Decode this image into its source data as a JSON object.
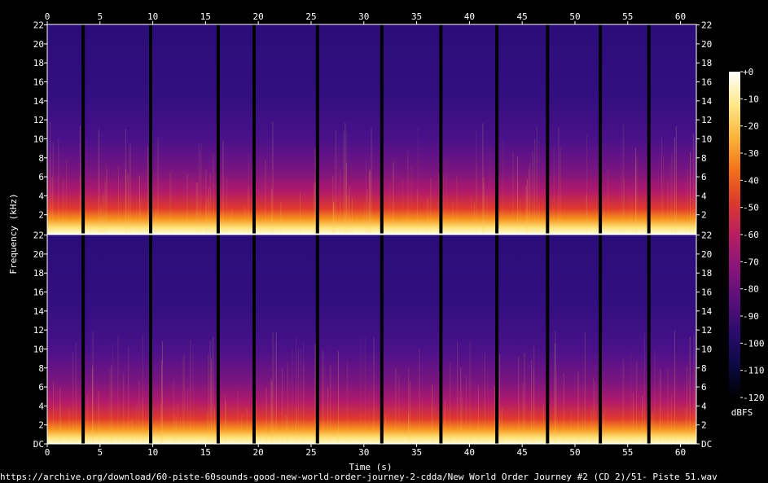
{
  "chart_data": {
    "type": "heatmap",
    "xlabel": "Time (s)",
    "ylabel": "Frequency (kHz)",
    "x_ticks": [
      0,
      5,
      10,
      15,
      20,
      25,
      30,
      35,
      40,
      45,
      50,
      55,
      60
    ],
    "xlim": [
      0,
      61.5
    ],
    "y_tick_labels": [
      "DC",
      "2",
      "4",
      "6",
      "8",
      "10",
      "12",
      "14",
      "16",
      "18",
      "20",
      "22"
    ],
    "y_tick_values": [
      0,
      2,
      4,
      6,
      8,
      10,
      12,
      14,
      16,
      18,
      20,
      22
    ],
    "ylim": [
      0,
      22.05
    ],
    "channels": 2,
    "segment_boundaries_s": [
      3.4,
      9.8,
      16.2,
      19.6,
      25.6,
      31.7,
      37.3,
      42.6,
      47.4,
      52.4,
      57.0
    ],
    "colorbar": {
      "unit": "dBFS",
      "ticks": [
        "+0",
        "-10",
        "-20",
        "-30",
        "-40",
        "-50",
        "-60",
        "-70",
        "-80",
        "-90",
        "-100",
        "-110",
        "-120"
      ],
      "range": [
        -120,
        0
      ],
      "colors": [
        "#000000",
        "#0c0a44",
        "#2b0c6e",
        "#5a0f7a",
        "#8a157a",
        "#b81e62",
        "#dd3a2c",
        "#f2721a",
        "#fbb53a",
        "#fde88a",
        "#ffffff"
      ]
    },
    "footer": "https://archive.org/download/60-piste-60sounds-good-new-world-order-journey-2-cdda/New World Order Journey #2 (CD 2)/51- Piste 51.wav"
  }
}
